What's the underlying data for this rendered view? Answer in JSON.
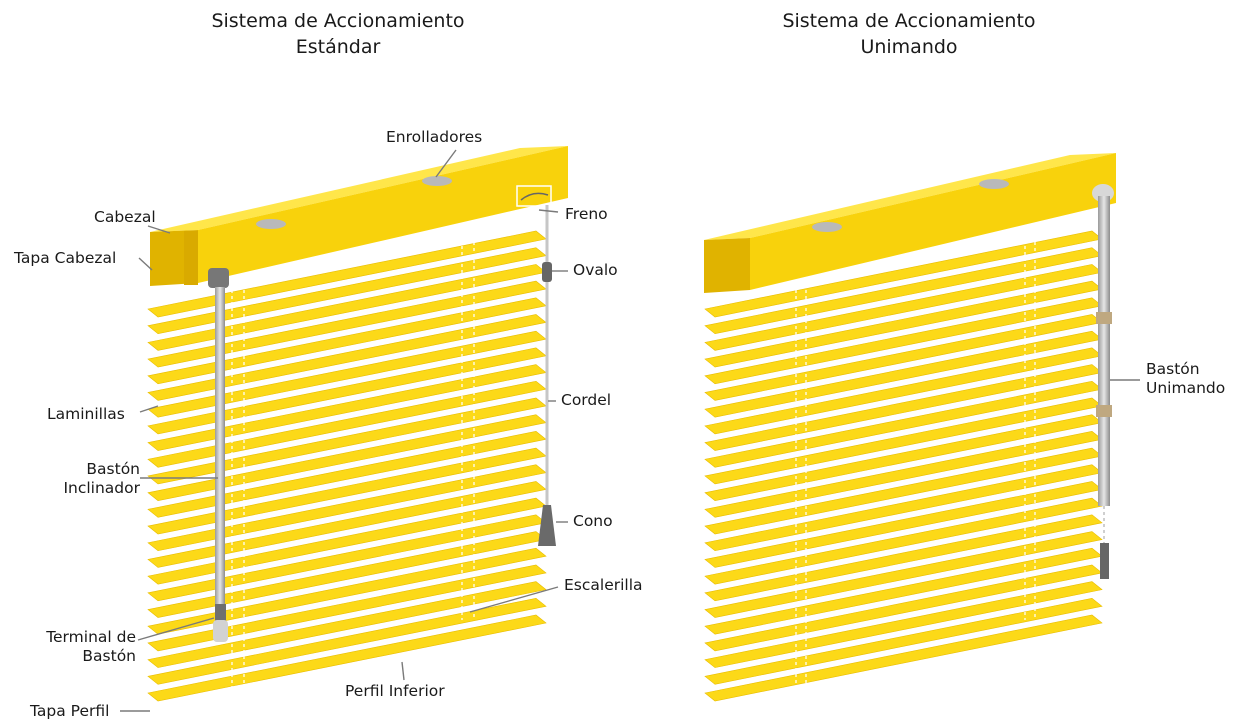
{
  "titles": {
    "left": {
      "line1": "Sistema de Accionamiento",
      "line2": "Estándar"
    },
    "right": {
      "line1": "Sistema de Accionamiento",
      "line2": "Unimando"
    }
  },
  "labels": {
    "enrolladores": "Enrolladores",
    "cabezal": "Cabezal",
    "freno": "Freno",
    "tapa_cabezal": "Tapa Cabezal",
    "ovalo": "Ovalo",
    "laminillas": "Laminillas",
    "cordel": "Cordel",
    "baston_inclinador": {
      "line1": "Bastón",
      "line2": "Inclinador"
    },
    "cono": "Cono",
    "escalerilla": "Escalerilla",
    "terminal_baston": {
      "line1": "Terminal de",
      "line2": "Bastón"
    },
    "perfil_inferior": "Perfil Inferior",
    "tapa_perfil": "Tapa Perfil",
    "baston_unimando": {
      "line1": "Bastón",
      "line2": "Unimando"
    }
  },
  "colors": {
    "slat": "#fcd918",
    "slat_edge": "#e9bd00",
    "head_front": "#f8d20c",
    "head_top": "#ffe64a",
    "head_side": "#e0b300",
    "line": "#777777"
  }
}
